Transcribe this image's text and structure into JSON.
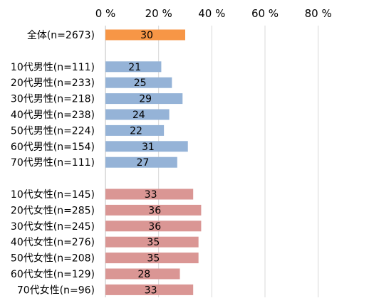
{
  "chart_data": {
    "type": "bar",
    "orientation": "horizontal",
    "title": "",
    "xlabel": "",
    "ylabel": "",
    "xlim": [
      0,
      90
    ],
    "ticks": [
      0,
      20,
      40,
      60,
      80
    ],
    "tick_labels": [
      "0 %",
      "20 %",
      "40 %",
      "60 %",
      "80 %"
    ],
    "grid": true,
    "legend": "none",
    "categories": [
      "全体(n=2673)",
      "",
      "10代男性(n=111)",
      "20代男性(n=233)",
      "30代男性(n=218)",
      "40代男性(n=238)",
      "50代男性(n=224)",
      "60代男性(n=154)",
      "70代男性(n=111)",
      "",
      "10代女性(n=145)",
      "20代女性(n=285)",
      "30代女性(n=245)",
      "40代女性(n=276)",
      "50代女性(n=208)",
      "60代女性(n=129)",
      "70代女性(n=96)"
    ],
    "values": [
      30,
      null,
      21,
      25,
      29,
      24,
      22,
      31,
      27,
      null,
      33,
      36,
      36,
      35,
      35,
      28,
      33
    ],
    "groups": [
      "total",
      null,
      "male",
      "male",
      "male",
      "male",
      "male",
      "male",
      "male",
      null,
      "female",
      "female",
      "female",
      "female",
      "female",
      "female",
      "female"
    ],
    "colors": {
      "total": "#F79646",
      "male": "#95B3D7",
      "female": "#DA9694",
      "grid": "#d9d9d9"
    }
  }
}
